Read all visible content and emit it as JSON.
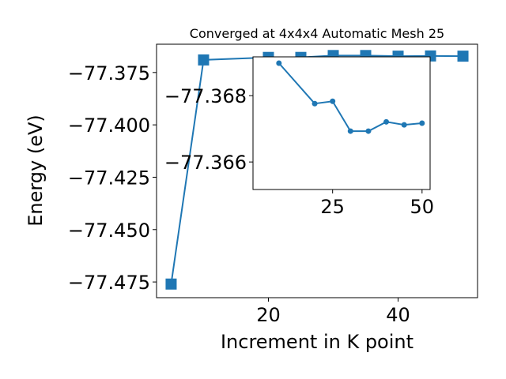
{
  "chart_data": [
    {
      "type": "line",
      "title": "Converged at 4x4x4 Automatic Mesh 25",
      "xlabel": "Increment in K point",
      "ylabel": "Energy (eV)",
      "x": [
        5,
        10,
        20,
        25,
        30,
        35,
        40,
        45,
        50
      ],
      "values": [
        -77.476,
        -77.369,
        -77.3678,
        -77.3678,
        -77.3669,
        -77.3669,
        -77.3672,
        -77.3671,
        -77.3672
      ],
      "color": "#1f77b4",
      "marker": "square",
      "xlim": [
        2.75,
        52.25
      ],
      "ylim": [
        -77.4825,
        -77.3615
      ],
      "xticks": [
        20,
        40
      ],
      "yticks": [
        {
          "value": -77.375,
          "label": "−77.375"
        },
        {
          "value": -77.4,
          "label": "−77.400"
        },
        {
          "value": -77.425,
          "label": "−77.425"
        },
        {
          "value": -77.45,
          "label": "−77.450"
        },
        {
          "value": -77.475,
          "label": "−77.475"
        }
      ]
    },
    {
      "type": "line",
      "x": [
        10,
        20,
        25,
        30,
        35,
        40,
        45,
        50
      ],
      "values": [
        -77.36898,
        -77.36776,
        -77.36783,
        -77.36693,
        -77.36693,
        -77.36721,
        -77.36712,
        -77.36717
      ],
      "color": "#1f77b4",
      "marker": "circle",
      "xlim": [
        2.75,
        52.25
      ],
      "ylim": [
        -77.36517,
        -77.36917
      ],
      "xticks": [
        25,
        50
      ],
      "yticks": [
        {
          "value": -77.368,
          "label": "−77.368"
        },
        {
          "value": -77.366,
          "label": "−77.366"
        }
      ]
    }
  ]
}
